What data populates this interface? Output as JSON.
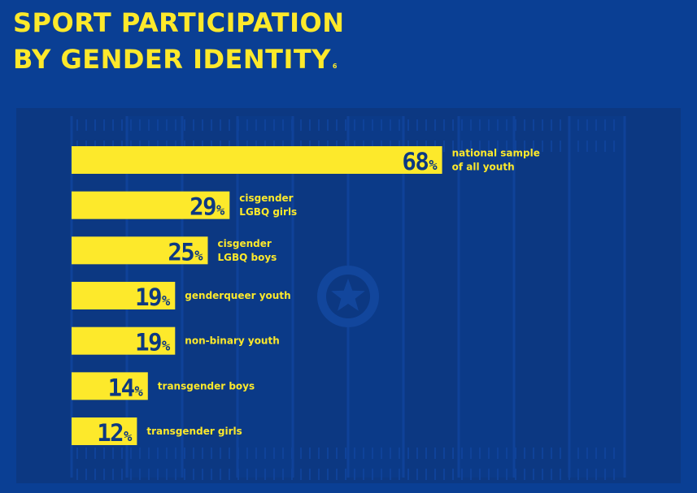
{
  "title": {
    "line1": "SPORT PARTICIPATION",
    "line2": "BY GENDER IDENTITY",
    "footnote": "6"
  },
  "colors": {
    "background": "#0a3f94",
    "field": "#0c3882",
    "bar": "#fde92b",
    "value_text": "#0c3882",
    "label_text": "#fde92b"
  },
  "decoration": {
    "emblem": "star-emblem-icon"
  },
  "chart_data": {
    "type": "bar",
    "orientation": "horizontal",
    "unit": "%",
    "categories": [
      [
        "national sample",
        "of all youth"
      ],
      [
        "cisgender",
        "LGBQ girls"
      ],
      [
        "cisgender",
        "LGBQ boys"
      ],
      [
        "genderqueer youth"
      ],
      [
        "non-binary youth"
      ],
      [
        "transgender boys"
      ],
      [
        "transgender girls"
      ]
    ],
    "values": [
      68,
      29,
      25,
      19,
      19,
      14,
      12
    ],
    "xlim": [
      0,
      100
    ],
    "grid": false,
    "legend": "none"
  }
}
